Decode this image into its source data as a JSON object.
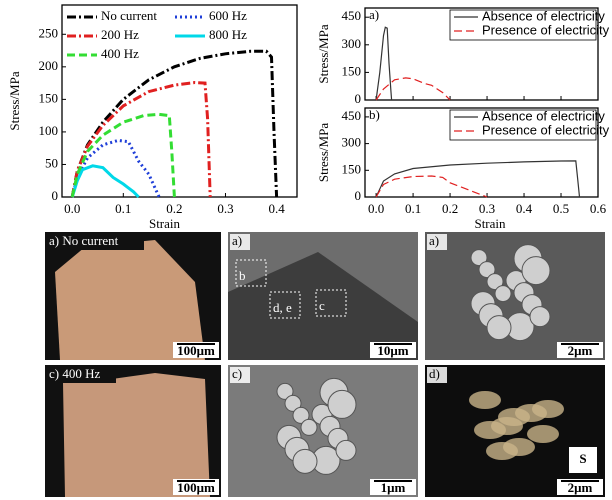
{
  "chart_data": [
    {
      "type": "line",
      "xlabel": "Strain",
      "ylabel": "Stress/MPa",
      "xlim": [
        -0.02,
        0.44
      ],
      "ylim": [
        0,
        295
      ],
      "xticks": [
        {
          "value": 0,
          "label": "0.0"
        },
        0.1,
        0.2,
        0.3,
        0.4
      ],
      "yticks": [
        0,
        50,
        100,
        150,
        200,
        250
      ],
      "legend": "upper left",
      "series": [
        {
          "name": "No current",
          "color": "#000000",
          "style": "dashdot",
          "x": [
            0,
            0.01,
            0.03,
            0.06,
            0.1,
            0.15,
            0.2,
            0.25,
            0.3,
            0.35,
            0.38,
            0.39,
            0.395,
            0.4
          ],
          "values": [
            0,
            40,
            80,
            115,
            150,
            180,
            200,
            213,
            220,
            224,
            224,
            215,
            100,
            0
          ]
        },
        {
          "name": "600 Hz",
          "color": "#1f3fd8",
          "style": "dotted",
          "x": [
            0,
            0.01,
            0.03,
            0.06,
            0.09,
            0.11,
            0.13,
            0.15,
            0.17
          ],
          "values": [
            0,
            30,
            60,
            80,
            87,
            85,
            55,
            35,
            0
          ]
        },
        {
          "name": "200 Hz",
          "color": "#e02020",
          "style": "dashdot",
          "x": [
            0,
            0.01,
            0.03,
            0.06,
            0.1,
            0.15,
            0.2,
            0.24,
            0.26,
            0.265,
            0.27
          ],
          "values": [
            0,
            40,
            78,
            110,
            140,
            162,
            172,
            176,
            175,
            120,
            0
          ]
        },
        {
          "name": "800 Hz",
          "color": "#00d8e8",
          "style": "solid",
          "x": [
            0,
            0.01,
            0.02,
            0.04,
            0.06,
            0.08,
            0.1,
            0.12,
            0.13
          ],
          "values": [
            0,
            25,
            42,
            48,
            45,
            30,
            20,
            8,
            0
          ]
        },
        {
          "name": "400 Hz",
          "color": "#33dd33",
          "style": "dashed",
          "x": [
            0,
            0.01,
            0.03,
            0.06,
            0.1,
            0.14,
            0.17,
            0.19,
            0.195,
            0.2
          ],
          "values": [
            0,
            35,
            70,
            95,
            115,
            125,
            127,
            125,
            70,
            0
          ]
        }
      ]
    },
    {
      "type": "line",
      "label": "a)",
      "ylabel": "Stress/MPa",
      "xlim": [
        -0.03,
        0.6
      ],
      "ylim": [
        0,
        500
      ],
      "xticks": [
        {
          "value": 0,
          "label": "0.0"
        },
        0.1,
        0.2,
        0.3,
        0.4,
        0.5,
        0.6
      ],
      "xtick_labels": false,
      "yticks": [
        0,
        150,
        300,
        450
      ],
      "legend": "upper right",
      "series": [
        {
          "name": "Absence of electricity",
          "color": "#333333",
          "style": "solid",
          "x": [
            0,
            0.01,
            0.02,
            0.025,
            0.03,
            0.035,
            0.04,
            0.042
          ],
          "values": [
            0,
            150,
            350,
            395,
            390,
            200,
            50,
            0
          ]
        },
        {
          "name": "Presence of electricity",
          "color": "#e02020",
          "style": "dashed",
          "x": [
            0,
            0.02,
            0.05,
            0.08,
            0.1,
            0.13,
            0.15,
            0.18,
            0.2
          ],
          "values": [
            0,
            60,
            110,
            120,
            115,
            90,
            80,
            40,
            0
          ]
        }
      ]
    },
    {
      "type": "line",
      "label": "b)",
      "xlabel": "Strain",
      "ylabel": "Stress/MPa",
      "xlim": [
        -0.03,
        0.6
      ],
      "ylim": [
        0,
        500
      ],
      "xticks": [
        {
          "value": 0,
          "label": "0.0"
        },
        0.1,
        0.2,
        0.3,
        0.4,
        0.5,
        0.6
      ],
      "yticks": [
        0,
        150,
        300,
        450
      ],
      "legend": "upper right",
      "series": [
        {
          "name": "Absence of electricity",
          "color": "#333333",
          "style": "solid",
          "x": [
            0,
            0.02,
            0.05,
            0.1,
            0.2,
            0.3,
            0.4,
            0.5,
            0.54,
            0.545,
            0.55
          ],
          "values": [
            0,
            90,
            130,
            160,
            180,
            190,
            197,
            202,
            203,
            100,
            0
          ]
        },
        {
          "name": "Presence of electricity",
          "color": "#e02020",
          "style": "dashed",
          "x": [
            0,
            0.02,
            0.05,
            0.1,
            0.15,
            0.18,
            0.2,
            0.25,
            0.3
          ],
          "values": [
            0,
            70,
            100,
            115,
            118,
            110,
            80,
            40,
            0
          ]
        }
      ]
    }
  ],
  "panels": [
    {
      "label": "a) No current",
      "scale": "100μm"
    },
    {
      "label": "a)",
      "marks": [
        "b",
        "d, e",
        "c"
      ],
      "scale": "10μm"
    },
    {
      "label": "a)",
      "scale": "2μm"
    },
    {
      "label": "c) 400 Hz",
      "scale": "100μm"
    },
    {
      "label": "c)",
      "scale": "1μm"
    },
    {
      "label": "d)",
      "scale": "2μm",
      "element": "S"
    }
  ]
}
